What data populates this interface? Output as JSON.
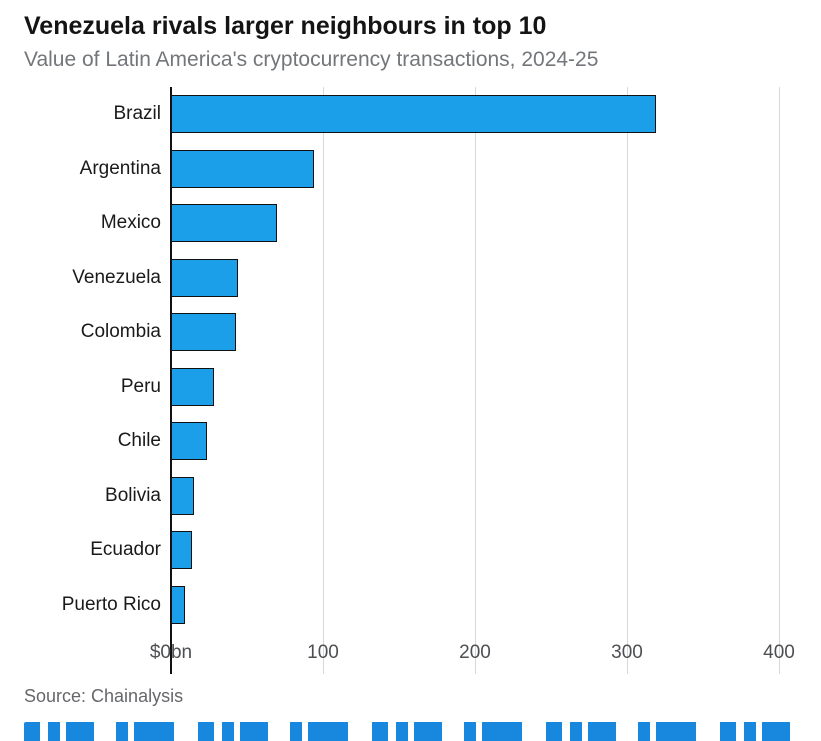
{
  "header": {
    "title": "Venezuela rivals larger neighbours in top 10",
    "subtitle": "Value of Latin America's cryptocurrency transactions, 2024-25"
  },
  "chart_data": {
    "type": "bar",
    "orientation": "horizontal",
    "title": "Venezuela rivals larger neighbours in top 10",
    "subtitle": "Value of Latin America's cryptocurrency transactions, 2024-25",
    "categories": [
      "Brazil",
      "Argentina",
      "Mexico",
      "Venezuela",
      "Colombia",
      "Peru",
      "Chile",
      "Bolivia",
      "Ecuador",
      "Puerto Rico"
    ],
    "values": [
      319,
      94,
      70,
      44,
      43,
      28,
      24,
      15,
      14,
      9
    ],
    "xlabel": "$bn",
    "ylabel": "",
    "xlim": [
      0,
      400
    ],
    "x_ticks": [
      "$0bn",
      "100",
      "200",
      "300",
      "400"
    ],
    "x_tick_values": [
      0,
      100,
      200,
      300,
      400
    ],
    "grid": true,
    "legend": false,
    "bar_color": "#1b9fe8"
  },
  "footer": {
    "source": "Source: Chainalysis"
  },
  "colors": {
    "bar_fill": "#1b9fe8",
    "bar_stroke": "#111111",
    "gridline": "#d8d8d8",
    "zero_axis": "#111111",
    "title_text": "#141414",
    "subtitle_text": "#73767a",
    "tick_text": "#4d4f53",
    "source_text": "#66676a",
    "background": "#ffffff"
  }
}
